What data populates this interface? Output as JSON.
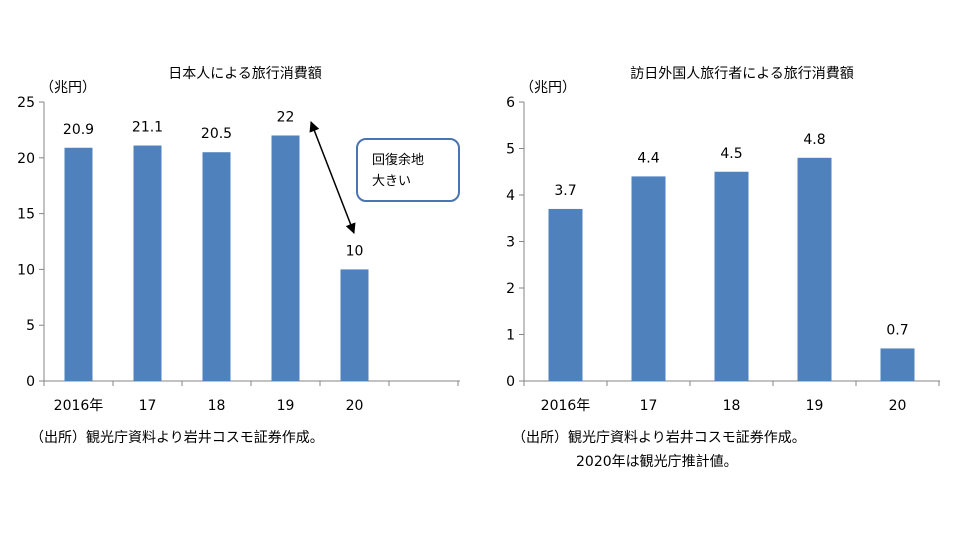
{
  "chart_data": [
    {
      "type": "bar",
      "title": "日本人による旅行消費額",
      "ylabel": "（兆円）",
      "categories": [
        "2016年",
        "17",
        "18",
        "19",
        "20"
      ],
      "values": [
        20.9,
        21.1,
        20.5,
        22,
        10
      ],
      "value_labels": [
        "20.9",
        "21.1",
        "20.5",
        "22",
        "10"
      ],
      "ylim": [
        0,
        25
      ],
      "yticks": [
        0,
        5,
        10,
        15,
        20,
        25
      ],
      "bar_color": "#4f81bd",
      "annotation": {
        "lines": [
          "回復余地",
          "大きい"
        ],
        "arrow_from": "19",
        "arrow_to": "20"
      }
    },
    {
      "type": "bar",
      "title": "訪日外国人旅行者による旅行消費額",
      "ylabel": "（兆円）",
      "categories": [
        "2016年",
        "17",
        "18",
        "19",
        "20"
      ],
      "values": [
        3.7,
        4.4,
        4.5,
        4.8,
        0.7
      ],
      "value_labels": [
        "3.7",
        "4.4",
        "4.5",
        "4.8",
        "0.7"
      ],
      "ylim": [
        0,
        6
      ],
      "yticks": [
        0,
        1,
        2,
        3,
        4,
        5,
        6
      ],
      "bar_color": "#4f81bd"
    }
  ],
  "notes": {
    "left_source": "（出所）観光庁資料より岩井コスモ証券作成。",
    "right_source": "（出所）観光庁資料より岩井コスモ証券作成。",
    "right_estimate": "2020年は観光庁推計値。"
  }
}
